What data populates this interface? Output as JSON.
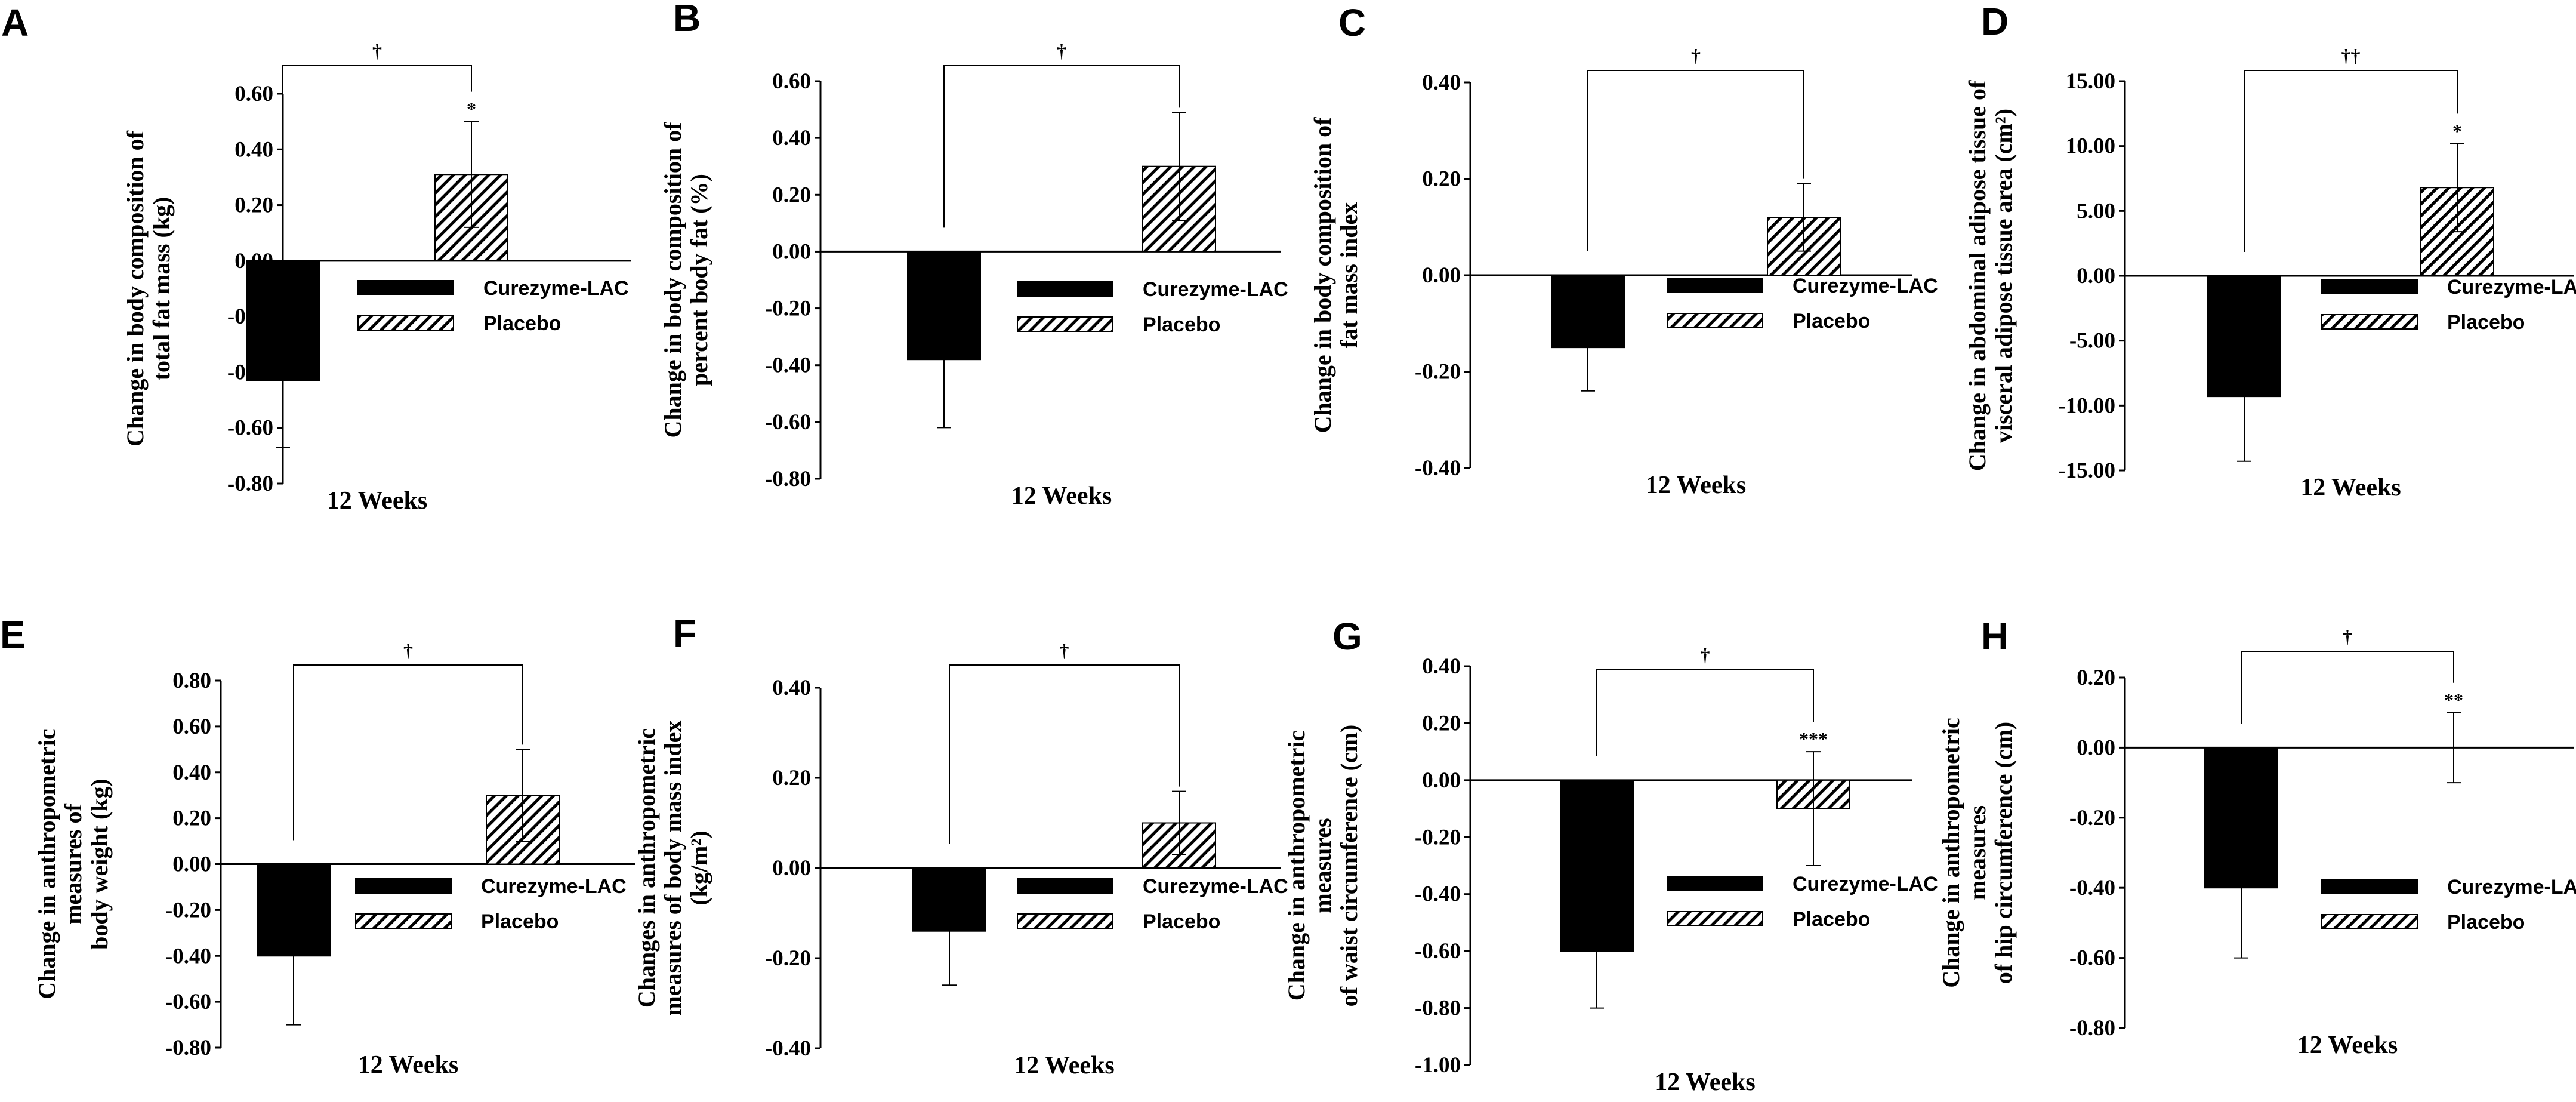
{
  "chart_data": [
    {
      "panel": "A",
      "type": "bar",
      "categories": [
        "12 Weeks"
      ],
      "ylabel": [
        "Change in body composition of",
        "total fat mass (kg)"
      ],
      "ylim": [
        -0.8,
        0.6
      ],
      "yticks": [
        -0.8,
        -0.6,
        -0.4,
        -0.2,
        0.0,
        0.2,
        0.4,
        0.6
      ],
      "tick_decimals": 2,
      "series": [
        {
          "name": "Curezyme-LAC",
          "pattern": "solid",
          "values": [
            -0.43
          ],
          "err_low": [
            -0.67
          ],
          "err_high": [
            -0.19
          ],
          "star": ""
        },
        {
          "name": "Placebo",
          "pattern": "hatch",
          "values": [
            0.31
          ],
          "err_low": [
            0.12
          ],
          "err_high": [
            0.5
          ],
          "star": "*"
        }
      ],
      "bracket": "†",
      "legend": "center-right"
    },
    {
      "panel": "B",
      "type": "bar",
      "categories": [
        "12 Weeks"
      ],
      "ylabel": [
        "Change in body composition of",
        "percent body fat (%)"
      ],
      "ylim": [
        -0.8,
        0.6
      ],
      "yticks": [
        -0.8,
        -0.6,
        -0.4,
        -0.2,
        0.0,
        0.2,
        0.4,
        0.6
      ],
      "tick_decimals": 2,
      "series": [
        {
          "name": "Curezyme-LAC",
          "pattern": "solid",
          "values": [
            -0.38
          ],
          "err_low": [
            -0.62
          ],
          "err_high": [
            -0.14
          ],
          "star": ""
        },
        {
          "name": "Placebo",
          "pattern": "hatch",
          "values": [
            0.3
          ],
          "err_low": [
            0.11
          ],
          "err_high": [
            0.49
          ],
          "star": ""
        }
      ],
      "bracket": "†",
      "legend": "center-right"
    },
    {
      "panel": "C",
      "type": "bar",
      "categories": [
        "12 Weeks"
      ],
      "ylabel": [
        "Change in body composition of",
        "fat mass index"
      ],
      "ylim": [
        -0.4,
        0.4
      ],
      "yticks": [
        -0.4,
        -0.2,
        0.0,
        0.2,
        0.4
      ],
      "tick_decimals": 2,
      "series": [
        {
          "name": "Curezyme-LAC",
          "pattern": "solid",
          "values": [
            -0.15
          ],
          "err_low": [
            -0.24
          ],
          "err_high": [
            -0.06
          ],
          "star": ""
        },
        {
          "name": "Placebo",
          "pattern": "hatch",
          "values": [
            0.12
          ],
          "err_low": [
            0.05
          ],
          "err_high": [
            0.19
          ],
          "star": ""
        }
      ],
      "bracket": "†",
      "legend": "center-right"
    },
    {
      "panel": "D",
      "type": "bar",
      "categories": [
        "12 Weeks"
      ],
      "ylabel": [
        "Change in abdominal adipose tissue of",
        "visceral adipose tissue area (cm²)"
      ],
      "ylim": [
        -15,
        15
      ],
      "yticks": [
        -15,
        -10,
        -5,
        0,
        5,
        10,
        15
      ],
      "tick_decimals": 2,
      "series": [
        {
          "name": "Curezyme-LAC",
          "pattern": "solid",
          "values": [
            -9.3
          ],
          "err_low": [
            -14.3
          ],
          "err_high": [
            -4.3
          ],
          "star": ""
        },
        {
          "name": "Placebo",
          "pattern": "hatch",
          "values": [
            6.8
          ],
          "err_low": [
            3.4
          ],
          "err_high": [
            10.2
          ],
          "star": "*"
        }
      ],
      "bracket": "††",
      "legend": "center-right"
    },
    {
      "panel": "E",
      "type": "bar",
      "categories": [
        "12 Weeks"
      ],
      "ylabel": [
        "Change in anthropometric",
        "measures of",
        "body weight (kg)"
      ],
      "ylim": [
        -0.8,
        0.8
      ],
      "yticks": [
        -0.8,
        -0.6,
        -0.4,
        -0.2,
        0.0,
        0.2,
        0.4,
        0.6,
        0.8
      ],
      "tick_decimals": 2,
      "series": [
        {
          "name": "Curezyme-LAC",
          "pattern": "solid",
          "values": [
            -0.4
          ],
          "err_low": [
            -0.7
          ],
          "err_high": [
            -0.1
          ],
          "star": ""
        },
        {
          "name": "Placebo",
          "pattern": "hatch",
          "values": [
            0.3
          ],
          "err_low": [
            0.1
          ],
          "err_high": [
            0.5
          ],
          "star": ""
        }
      ],
      "bracket": "†",
      "legend": "center-right"
    },
    {
      "panel": "F",
      "type": "bar",
      "categories": [
        "12 Weeks"
      ],
      "ylabel": [
        "Changes in anthropometric",
        "measures of body mass index",
        "(kg/m²)"
      ],
      "ylim": [
        -0.4,
        0.4
      ],
      "yticks": [
        -0.4,
        -0.2,
        0.0,
        0.2,
        0.4
      ],
      "tick_decimals": 2,
      "series": [
        {
          "name": "Curezyme-LAC",
          "pattern": "solid",
          "values": [
            -0.14
          ],
          "err_low": [
            -0.26
          ],
          "err_high": [
            -0.02
          ],
          "star": ""
        },
        {
          "name": "Placebo",
          "pattern": "hatch",
          "values": [
            0.1
          ],
          "err_low": [
            0.03
          ],
          "err_high": [
            0.17
          ],
          "star": ""
        }
      ],
      "bracket": "†",
      "legend": "center-right"
    },
    {
      "panel": "G",
      "type": "bar",
      "categories": [
        "12 Weeks"
      ],
      "ylabel": [
        "Change in anthropometric",
        "measures",
        "of waist circumference (cm)"
      ],
      "ylim": [
        -1.0,
        0.4
      ],
      "yticks": [
        -1.0,
        -0.8,
        -0.6,
        -0.4,
        -0.2,
        0.0,
        0.2,
        0.4
      ],
      "tick_decimals": 2,
      "series": [
        {
          "name": "Curezyme-LAC",
          "pattern": "solid",
          "values": [
            -0.6
          ],
          "err_low": [
            -0.8
          ],
          "err_high": [
            -0.4
          ],
          "star": ""
        },
        {
          "name": "Placebo",
          "pattern": "hatch",
          "values": [
            -0.1
          ],
          "err_low": [
            -0.3
          ],
          "err_high": [
            0.1
          ],
          "star": "***"
        }
      ],
      "bracket": "†",
      "legend": "center-right"
    },
    {
      "panel": "H",
      "type": "bar",
      "categories": [
        "12 Weeks"
      ],
      "ylabel": [
        "Change in anthropometric",
        "measures",
        "of hip circumference (cm)"
      ],
      "ylim": [
        -0.8,
        0.2
      ],
      "yticks": [
        -0.8,
        -0.6,
        -0.4,
        -0.2,
        0.0,
        0.2
      ],
      "tick_decimals": 2,
      "series": [
        {
          "name": "Curezyme-LAC",
          "pattern": "solid",
          "values": [
            -0.4
          ],
          "err_low": [
            -0.6
          ],
          "err_high": [
            -0.2
          ],
          "star": ""
        },
        {
          "name": "Placebo",
          "pattern": "hatch",
          "values": [
            0.0
          ],
          "err_low": [
            -0.1
          ],
          "err_high": [
            0.1
          ],
          "star": "**"
        }
      ],
      "bracket": "†",
      "legend": "center-right"
    }
  ]
}
